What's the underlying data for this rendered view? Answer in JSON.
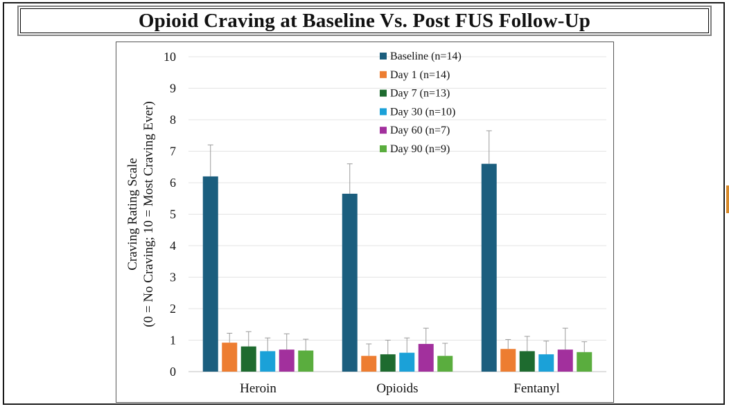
{
  "title": "Opioid Craving at Baseline Vs. Post FUS Follow-Up",
  "chart_data": {
    "type": "bar",
    "ylabel_line1": "Craving Rating Scale",
    "ylabel_line2": "(0 = No Craving; 10 = Most Craving Ever)",
    "xlabel": "",
    "ylim": [
      0,
      10
    ],
    "yticks": [
      0,
      1,
      2,
      3,
      4,
      5,
      6,
      7,
      8,
      9,
      10
    ],
    "grid": true,
    "legend_position": "top-center",
    "categories": [
      "Heroin",
      "Opioids",
      "Fentanyl"
    ],
    "series": [
      {
        "name": "Baseline (n=14)",
        "color": "#1b5e7e",
        "values": [
          6.2,
          5.65,
          6.6
        ],
        "errors": [
          1.0,
          0.95,
          1.05
        ]
      },
      {
        "name": "Day 1 (n=14)",
        "color": "#ed7d31",
        "values": [
          0.92,
          0.5,
          0.72
        ],
        "errors": [
          0.3,
          0.38,
          0.3
        ]
      },
      {
        "name": "Day 7 (n=13)",
        "color": "#1e6b2f",
        "values": [
          0.8,
          0.55,
          0.65
        ],
        "errors": [
          0.47,
          0.45,
          0.47
        ]
      },
      {
        "name": "Day 30 (n=10)",
        "color": "#1ba1d8",
        "values": [
          0.65,
          0.6,
          0.55
        ],
        "errors": [
          0.42,
          0.47,
          0.42
        ]
      },
      {
        "name": "Day 60 (n=7)",
        "color": "#a2309d",
        "values": [
          0.7,
          0.88,
          0.7
        ],
        "errors": [
          0.5,
          0.5,
          0.68
        ]
      },
      {
        "name": "Day 90 (n=9)",
        "color": "#5aad3e",
        "values": [
          0.67,
          0.5,
          0.62
        ],
        "errors": [
          0.36,
          0.4,
          0.33
        ]
      }
    ]
  }
}
